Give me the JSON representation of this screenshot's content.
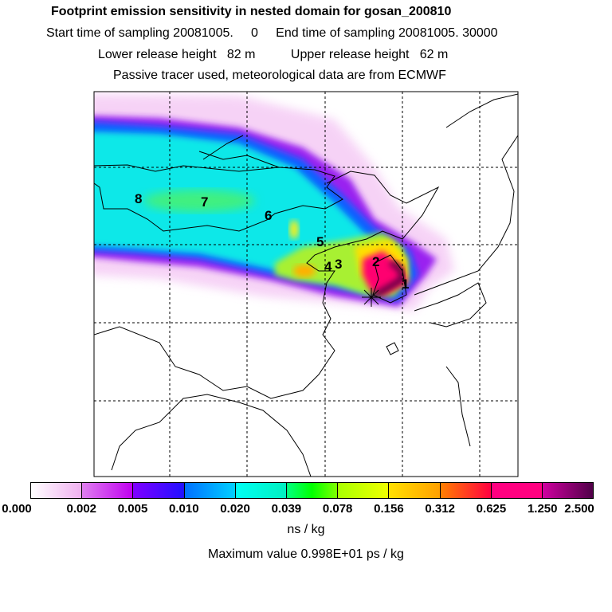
{
  "header": {
    "title": "Footprint emission sensitivity in nested domain for gosan_200810",
    "line1": "Start time of sampling 20081005.     0     End time of sampling 20081005. 30000",
    "line2": "Lower release height   82 m          Upper release height   62 m",
    "line3": "Passive tracer used, meteorological data are from ECMWF"
  },
  "map": {
    "labels": [
      "8",
      "7",
      "6",
      "5",
      "4",
      "3",
      "2",
      "1"
    ],
    "receptor_marker": "star-icon"
  },
  "colorbar": {
    "ticks": [
      "0.000",
      "0.002",
      "0.005",
      "0.010",
      "0.020",
      "0.039",
      "0.078",
      "0.156",
      "0.312",
      "0.625",
      "1.250",
      "2.500"
    ],
    "bins": [
      [
        "#ffffff",
        "#f0b0f0"
      ],
      [
        "#e080f0",
        "#c000f0"
      ],
      [
        "#8000ff",
        "#2010ff"
      ],
      [
        "#0070ff",
        "#00d0ff"
      ],
      [
        "#00fff4",
        "#00f0c0"
      ],
      [
        "#00ff80",
        "#00ff00",
        "#80ff00"
      ],
      [
        "#a8ff00",
        "#f0ff00"
      ],
      [
        "#ffe000",
        "#ffa000"
      ],
      [
        "#ff8000",
        "#ff0040"
      ],
      [
        "#ff0080",
        "#ff0080"
      ],
      [
        "#d000a0",
        "#500048"
      ]
    ],
    "unit": "ns / kg",
    "max_value": "Maximum value  0.998E+01 ps / kg"
  }
}
